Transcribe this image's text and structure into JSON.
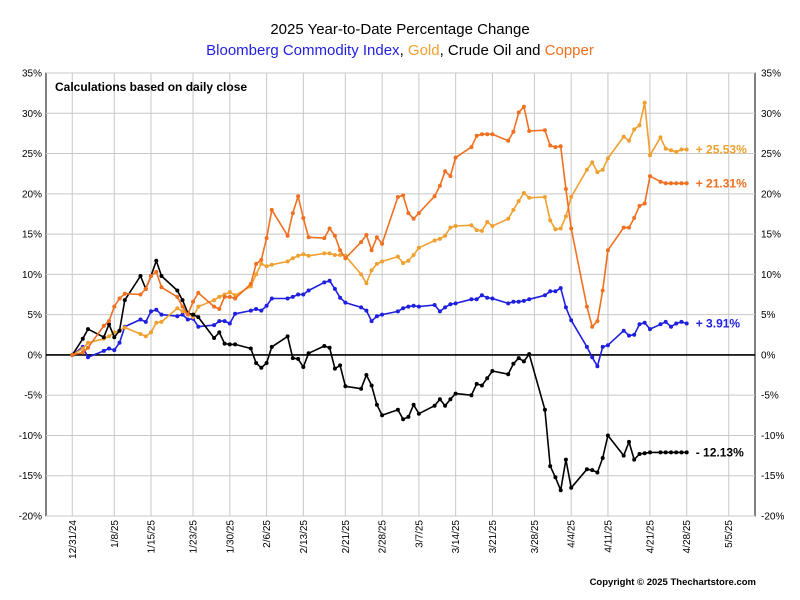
{
  "chart_data": {
    "type": "line",
    "title": "2025 Year-to-Date Percentage Change",
    "subtitle_parts": [
      {
        "text": "Bloomberg Commodity Index",
        "color": "#1f1fe0"
      },
      {
        "text": ", ",
        "color": "#000000"
      },
      {
        "text": "Gold",
        "color": "#f0a030"
      },
      {
        "text": ", Crude Oil and ",
        "color": "#000000"
      },
      {
        "text": "Copper",
        "color": "#f07020"
      }
    ],
    "annotation": "Calculations based on daily close",
    "copyright": "Copyright © 2025 Thechartstore.com",
    "ylim": [
      -20,
      35
    ],
    "yticks": [
      35,
      30,
      25,
      20,
      15,
      10,
      5,
      0,
      -5,
      -10,
      -15,
      -20
    ],
    "ytick_labels": [
      "35%",
      "30%",
      "25%",
      "20%",
      "15%",
      "10%",
      "5%",
      "0%",
      "-5%",
      "-10%",
      "-15%",
      "-20%"
    ],
    "xlim": [
      -5,
      130
    ],
    "xticks": [
      0,
      8,
      15,
      23,
      30,
      37,
      44,
      52,
      59,
      66,
      73,
      80,
      88,
      95,
      102,
      110,
      117,
      125
    ],
    "xtick_labels": [
      "12/31/24",
      "1/8/25",
      "1/15/25",
      "1/23/25",
      "1/30/25",
      "2/6/25",
      "2/13/25",
      "2/21/25",
      "2/28/25",
      "3/7/25",
      "3/14/25",
      "3/21/25",
      "3/28/25",
      "4/4/25",
      "4/11/25",
      "4/21/25",
      "4/28/25",
      "5/5/25"
    ],
    "x_unit": "calendar days since 12/31/24",
    "series": [
      {
        "name": "Bloomberg Commodity Index",
        "color": "#1f1fe0",
        "end_label": "+ 3.91%",
        "x": [
          0,
          2,
          3,
          6,
          7,
          8,
          9,
          10,
          13,
          14,
          15,
          16,
          17,
          20,
          21,
          22,
          23,
          24,
          27,
          28,
          29,
          30,
          31,
          34,
          35,
          36,
          37,
          38,
          41,
          42,
          43,
          44,
          45,
          48,
          49,
          50,
          51,
          52,
          55,
          56,
          57,
          58,
          59,
          62,
          63,
          64,
          65,
          66,
          69,
          70,
          71,
          72,
          73,
          76,
          77,
          78,
          79,
          80,
          83,
          84,
          85,
          86,
          87,
          90,
          91,
          92,
          93,
          94,
          95,
          98,
          99,
          100,
          101,
          102,
          105,
          106,
          107,
          108,
          109,
          110,
          112,
          113,
          114,
          115,
          116,
          117
        ],
        "y": [
          0,
          1,
          -0.3,
          0.5,
          0.8,
          0.6,
          1.5,
          3.5,
          4.4,
          4.1,
          5.4,
          5.6,
          5.0,
          4.8,
          5.0,
          4.4,
          4.5,
          3.5,
          3.7,
          4.2,
          4.2,
          3.9,
          5.1,
          5.5,
          5.7,
          5.5,
          6.1,
          7.0,
          7.0,
          7.2,
          7.5,
          7.5,
          8.0,
          9.0,
          9.2,
          8.2,
          7.1,
          6.5,
          5.9,
          5.5,
          4.2,
          4.8,
          5.0,
          5.4,
          5.8,
          6.0,
          6.1,
          6.0,
          6.2,
          5.4,
          5.9,
          6.3,
          6.4,
          6.9,
          6.9,
          7.4,
          7.1,
          7.0,
          6.4,
          6.6,
          6.6,
          6.7,
          6.9,
          7.4,
          7.9,
          7.9,
          8.3,
          5.9,
          4.3,
          1.0,
          -0.3,
          -1.4,
          1.0,
          1.2,
          3.0,
          2.4,
          2.5,
          3.8,
          4.0,
          3.2,
          3.8,
          4.1,
          3.5,
          3.9,
          4.1,
          3.9
        ]
      },
      {
        "name": "Gold",
        "color": "#f0a030",
        "end_label": "+ 25.53%",
        "x": [
          0,
          2,
          3,
          6,
          7,
          8,
          9,
          10,
          13,
          14,
          15,
          16,
          17,
          20,
          21,
          22,
          23,
          24,
          27,
          28,
          29,
          30,
          31,
          34,
          35,
          36,
          37,
          38,
          41,
          42,
          43,
          44,
          45,
          48,
          49,
          50,
          51,
          52,
          55,
          56,
          57,
          58,
          59,
          62,
          63,
          64,
          65,
          66,
          69,
          70,
          71,
          72,
          73,
          76,
          77,
          78,
          79,
          80,
          83,
          84,
          85,
          86,
          87,
          90,
          91,
          92,
          93,
          94,
          95,
          98,
          99,
          100,
          101,
          102,
          105,
          106,
          107,
          108,
          109,
          110,
          112,
          113,
          114,
          115,
          116,
          117
        ],
        "y": [
          0,
          0.8,
          1.5,
          2.0,
          2.3,
          2.8,
          3.0,
          3.4,
          2.6,
          2.3,
          2.8,
          4.0,
          4.1,
          5.8,
          5.4,
          5.1,
          4.7,
          6.0,
          6.8,
          7.2,
          7.5,
          7.8,
          7.4,
          8.5,
          10.0,
          11.3,
          11.0,
          11.2,
          11.6,
          12.0,
          12.3,
          12.5,
          12.3,
          12.6,
          12.6,
          12.4,
          12.4,
          12.3,
          10.0,
          8.9,
          10.5,
          11.3,
          11.6,
          12.2,
          11.4,
          11.7,
          12.4,
          13.3,
          14.2,
          14.4,
          14.8,
          15.8,
          16.0,
          16.1,
          15.5,
          15.4,
          16.5,
          16.0,
          16.9,
          18.0,
          19.1,
          20.1,
          19.5,
          19.6,
          16.7,
          15.6,
          15.7,
          17.2,
          19.6,
          23.0,
          23.9,
          22.7,
          23.0,
          24.4,
          27.1,
          26.6,
          28.0,
          28.5,
          31.3,
          24.8,
          27.0,
          25.6,
          25.4,
          25.2,
          25.5,
          25.5
        ]
      },
      {
        "name": "Crude Oil",
        "color": "#000000",
        "end_label": "- 12.13%",
        "x": [
          0,
          2,
          3,
          6,
          7,
          8,
          9,
          10,
          13,
          14,
          15,
          16,
          17,
          20,
          21,
          22,
          23,
          24,
          27,
          28,
          29,
          30,
          31,
          34,
          35,
          36,
          37,
          38,
          41,
          42,
          43,
          44,
          45,
          48,
          49,
          50,
          51,
          52,
          55,
          56,
          57,
          58,
          59,
          62,
          63,
          64,
          65,
          66,
          69,
          70,
          71,
          72,
          73,
          76,
          77,
          78,
          79,
          80,
          83,
          84,
          85,
          86,
          87,
          90,
          91,
          92,
          93,
          94,
          95,
          98,
          99,
          100,
          101,
          102,
          105,
          106,
          107,
          108,
          109,
          110,
          112,
          113,
          114,
          115,
          116,
          117
        ],
        "y": [
          0,
          2.0,
          3.2,
          2.2,
          3.8,
          2.2,
          3.0,
          6.8,
          9.8,
          8.2,
          9.8,
          11.7,
          9.8,
          8.0,
          6.8,
          5.2,
          5.0,
          4.7,
          2.1,
          2.8,
          1.4,
          1.3,
          1.3,
          0.8,
          -1.0,
          -1.6,
          -1.0,
          1.0,
          2.3,
          -0.4,
          -0.5,
          -1.5,
          0.2,
          1.1,
          0.9,
          -1.7,
          -1.3,
          -3.9,
          -4.2,
          -2.5,
          -3.8,
          -6.2,
          -7.5,
          -6.8,
          -8.0,
          -7.7,
          -6.2,
          -7.3,
          -6.3,
          -5.5,
          -6.3,
          -5.5,
          -4.8,
          -5.0,
          -3.6,
          -3.8,
          -2.9,
          -2.0,
          -2.4,
          -1.1,
          -0.4,
          -0.8,
          0.1,
          -6.8,
          -13.8,
          -15.2,
          -16.8,
          -13.0,
          -16.5,
          -14.2,
          -14.3,
          -14.6,
          -12.8,
          -10.0,
          -12.5,
          -10.8,
          -13.0,
          -12.3,
          -12.2,
          -12.1,
          -12.1,
          -12.1,
          -12.1,
          -12.1,
          -12.1,
          -12.1
        ]
      },
      {
        "name": "Copper",
        "color": "#f07020",
        "end_label": "+ 21.31%",
        "x": [
          0,
          2,
          3,
          6,
          7,
          8,
          9,
          10,
          13,
          14,
          15,
          16,
          17,
          20,
          21,
          22,
          23,
          24,
          27,
          28,
          29,
          30,
          31,
          34,
          35,
          36,
          37,
          38,
          41,
          42,
          43,
          44,
          45,
          48,
          49,
          50,
          51,
          52,
          55,
          56,
          57,
          58,
          59,
          62,
          63,
          64,
          65,
          66,
          69,
          70,
          71,
          72,
          73,
          76,
          77,
          78,
          79,
          80,
          83,
          84,
          85,
          86,
          87,
          90,
          91,
          92,
          93,
          94,
          95,
          98,
          99,
          100,
          101,
          102,
          105,
          106,
          107,
          108,
          109,
          110,
          112,
          113,
          114,
          115,
          116,
          117
        ],
        "y": [
          0,
          0.3,
          0.9,
          3.6,
          4.2,
          6.0,
          7.0,
          7.6,
          7.5,
          8.2,
          9.8,
          10.3,
          8.4,
          7.2,
          6.0,
          5.0,
          6.6,
          7.7,
          6.0,
          5.7,
          7.2,
          7.2,
          7.0,
          8.8,
          11.3,
          11.8,
          14.5,
          18.0,
          14.8,
          17.6,
          19.7,
          17.0,
          14.6,
          14.5,
          15.7,
          14.8,
          13.0,
          12.0,
          14.0,
          14.9,
          13.0,
          14.6,
          13.8,
          19.6,
          19.8,
          17.6,
          16.9,
          17.6,
          19.7,
          21.0,
          22.8,
          22.2,
          24.5,
          25.8,
          27.2,
          27.4,
          27.4,
          27.4,
          26.6,
          27.7,
          30.1,
          30.8,
          27.8,
          27.9,
          26.0,
          25.8,
          25.9,
          20.6,
          15.7,
          6.0,
          3.5,
          4.2,
          8.0,
          13.0,
          15.8,
          15.8,
          17.0,
          18.5,
          18.8,
          22.2,
          21.5,
          21.3,
          21.3,
          21.3,
          21.3,
          21.3
        ]
      }
    ]
  }
}
